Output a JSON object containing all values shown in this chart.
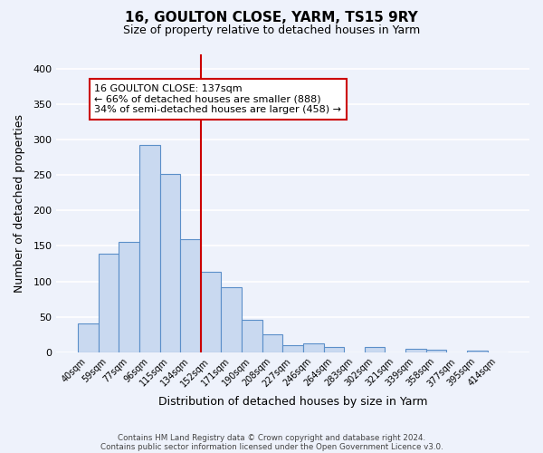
{
  "title": "16, GOULTON CLOSE, YARM, TS15 9RY",
  "subtitle": "Size of property relative to detached houses in Yarm",
  "xlabel": "Distribution of detached houses by size in Yarm",
  "ylabel": "Number of detached properties",
  "bar_labels": [
    "40sqm",
    "59sqm",
    "77sqm",
    "96sqm",
    "115sqm",
    "134sqm",
    "152sqm",
    "171sqm",
    "190sqm",
    "208sqm",
    "227sqm",
    "246sqm",
    "264sqm",
    "283sqm",
    "302sqm",
    "321sqm",
    "339sqm",
    "358sqm",
    "377sqm",
    "395sqm",
    "414sqm"
  ],
  "bar_values": [
    40,
    139,
    155,
    292,
    251,
    160,
    113,
    92,
    46,
    25,
    10,
    13,
    8,
    0,
    8,
    0,
    5,
    3,
    0,
    2,
    0
  ],
  "bar_color": "#c9d9f0",
  "bar_edge_color": "#5b8fc9",
  "vline_x": 5.5,
  "vline_color": "#cc0000",
  "annotation_line1": "16 GOULTON CLOSE: 137sqm",
  "annotation_line2": "← 66% of detached houses are smaller (888)",
  "annotation_line3": "34% of semi-detached houses are larger (458) →",
  "annotation_box_color": "#ffffff",
  "annotation_box_edge": "#cc0000",
  "ylim": [
    0,
    420
  ],
  "yticks": [
    0,
    50,
    100,
    150,
    200,
    250,
    300,
    350,
    400
  ],
  "footnote1": "Contains HM Land Registry data © Crown copyright and database right 2024.",
  "footnote2": "Contains public sector information licensed under the Open Government Licence v3.0.",
  "bg_color": "#eef2fb",
  "grid_color": "#ffffff",
  "figsize": [
    6.0,
    5.0
  ],
  "dpi": 100
}
